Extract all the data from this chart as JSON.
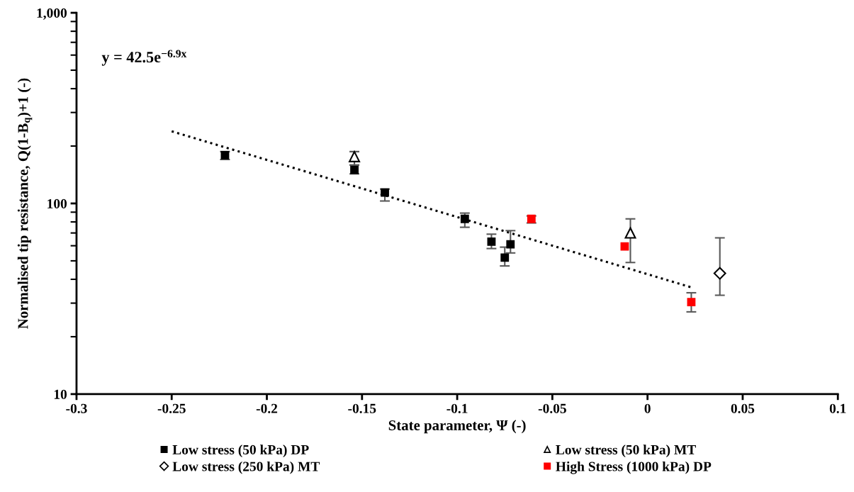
{
  "chart_data": {
    "type": "scatter",
    "xlabel": "State parameter, Ψ (-)",
    "ylabel": "Normalised tip resistance, Q(1-B$_{q}$)+1 (-)",
    "log": "y",
    "xlim": [
      -0.3,
      0.1
    ],
    "xticks": [
      -0.3,
      -0.25,
      -0.2,
      -0.15,
      -0.1,
      -0.05,
      0,
      0.05,
      0.1
    ],
    "ylim": [
      10,
      1000
    ],
    "yticks": [
      10,
      100,
      {
        "value": 1000,
        "label": "1,000"
      }
    ],
    "grid": false,
    "legend": "bottom",
    "annotations": [
      "y = 42.5e$^{−6.9x}$"
    ],
    "series": [
      {
        "name": "Low stress (50 kPa) DP",
        "color": "#000000",
        "marker": "square",
        "x": [
          -0.222,
          -0.154,
          -0.138,
          -0.096,
          -0.082,
          -0.075,
          -0.072
        ],
        "values": [
          179,
          150,
          114,
          83,
          63,
          52,
          61
        ],
        "errors": [
          [
            170,
            187
          ],
          [
            143,
            159
          ],
          [
            103,
            119
          ],
          [
            75,
            89
          ],
          [
            58,
            69
          ],
          [
            47,
            59
          ],
          [
            55,
            72
          ]
        ]
      },
      {
        "name": "Low stress (50 kPa) MT",
        "color": "#000000",
        "marker": "triangle",
        "x": [
          -0.154,
          -0.009
        ],
        "values": [
          176,
          70
        ],
        "errors": [
          [
            159,
            187
          ],
          [
            49,
            83
          ]
        ]
      },
      {
        "name": "Low stress (250 kPa) MT",
        "color": "#000000",
        "marker": "diamond",
        "x": [
          0.038
        ],
        "values": [
          43
        ],
        "errors": [
          [
            33,
            66
          ]
        ]
      },
      {
        "name": "High Stress (1000 kPa) DP",
        "color": "#ff0000",
        "marker": "square",
        "x": [
          -0.061,
          -0.012,
          0.023
        ],
        "values": [
          83,
          59.5,
          30.4
        ],
        "errors": [
          [
            79,
            86
          ],
          null,
          [
            27,
            34
          ]
        ]
      },
      {
        "type": "line",
        "color": "#000000",
        "line_style": "dotted",
        "marker": "none",
        "x": [
          -0.25,
          0.023
        ],
        "values": [
          239,
          36.3
        ]
      }
    ]
  }
}
